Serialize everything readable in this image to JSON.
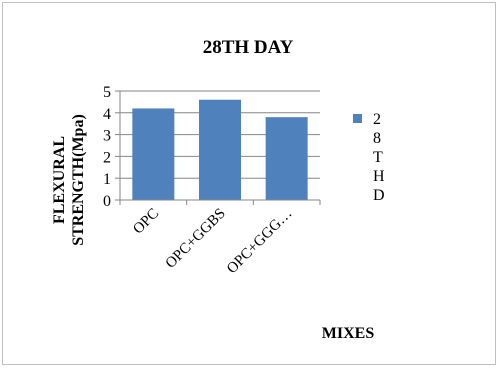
{
  "chart_data": {
    "type": "bar",
    "title": "28TH DAY",
    "xlabel": "MIXES",
    "ylabel_lines": [
      "FLEXURAL",
      "STRENGTH(Mpa)"
    ],
    "categories": [
      "OPC",
      "OPC+GGBS",
      "OPC+GGG…"
    ],
    "series": [
      {
        "name": "28THD",
        "legend_chars": [
          "2",
          "8",
          "T",
          "H",
          "D"
        ],
        "values": [
          4.2,
          4.6,
          3.8
        ]
      }
    ],
    "ylim": [
      0,
      5
    ],
    "yticks": [
      0,
      1,
      2,
      3,
      4,
      5
    ],
    "grid": true,
    "legend": "right",
    "colors": {
      "bar": "#4f81bd",
      "grid": "#868686",
      "axis": "#868686",
      "text": "#000000"
    }
  }
}
